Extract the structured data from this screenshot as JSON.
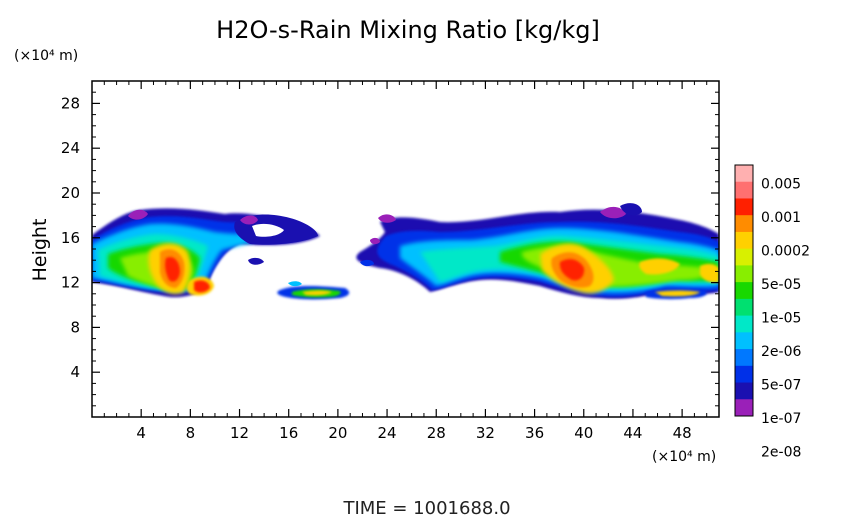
{
  "chart_data": {
    "type": "heatmap",
    "title": "H2O-s-Rain Mixing Ratio [kg/kg]",
    "ylabel": "Height",
    "y_unit": "(×10⁴ m)",
    "x_unit": "(×10⁴ m)",
    "footer": "TIME = 1001688.0",
    "xlim": [
      0,
      51
    ],
    "ylim": [
      0,
      30
    ],
    "x_ticks": [
      "4",
      "8",
      "12",
      "16",
      "20",
      "24",
      "28",
      "32",
      "36",
      "40",
      "44",
      "48"
    ],
    "y_ticks": [
      "4",
      "8",
      "12",
      "16",
      "20",
      "24",
      "28"
    ],
    "colorbar": {
      "labels": [
        "0.005",
        "0.001",
        "0.0002",
        "5e-05",
        "1e-05",
        "2e-06",
        "5e-07",
        "1e-07",
        "2e-08"
      ],
      "colors": [
        "#ffb0b0",
        "#ff7070",
        "#ff2000",
        "#ff8c00",
        "#ffd000",
        "#d8f000",
        "#88ee00",
        "#18d800",
        "#00e070",
        "#00e8c8",
        "#00c0ff",
        "#0078ff",
        "#0030e8",
        "#1a10b0",
        "#9a20b8"
      ]
    },
    "cloud_regions": [
      {
        "x_range": [
          0,
          21
        ],
        "y_range": [
          11,
          18.5
        ],
        "peak": "~0.001 near x=7,y=13 and x=9,y=12"
      },
      {
        "x_range": [
          15.5,
          21.5
        ],
        "y_range": [
          10.7,
          11.9
        ],
        "peak": "~5e-05"
      },
      {
        "x_range": [
          22,
          51
        ],
        "y_range": [
          10.7,
          19.3
        ],
        "peak": "~0.001 near x=39,y=13"
      },
      {
        "x_range": [
          45,
          50
        ],
        "y_range": [
          10.7,
          11.9
        ],
        "peak": "~5e-05"
      }
    ]
  }
}
